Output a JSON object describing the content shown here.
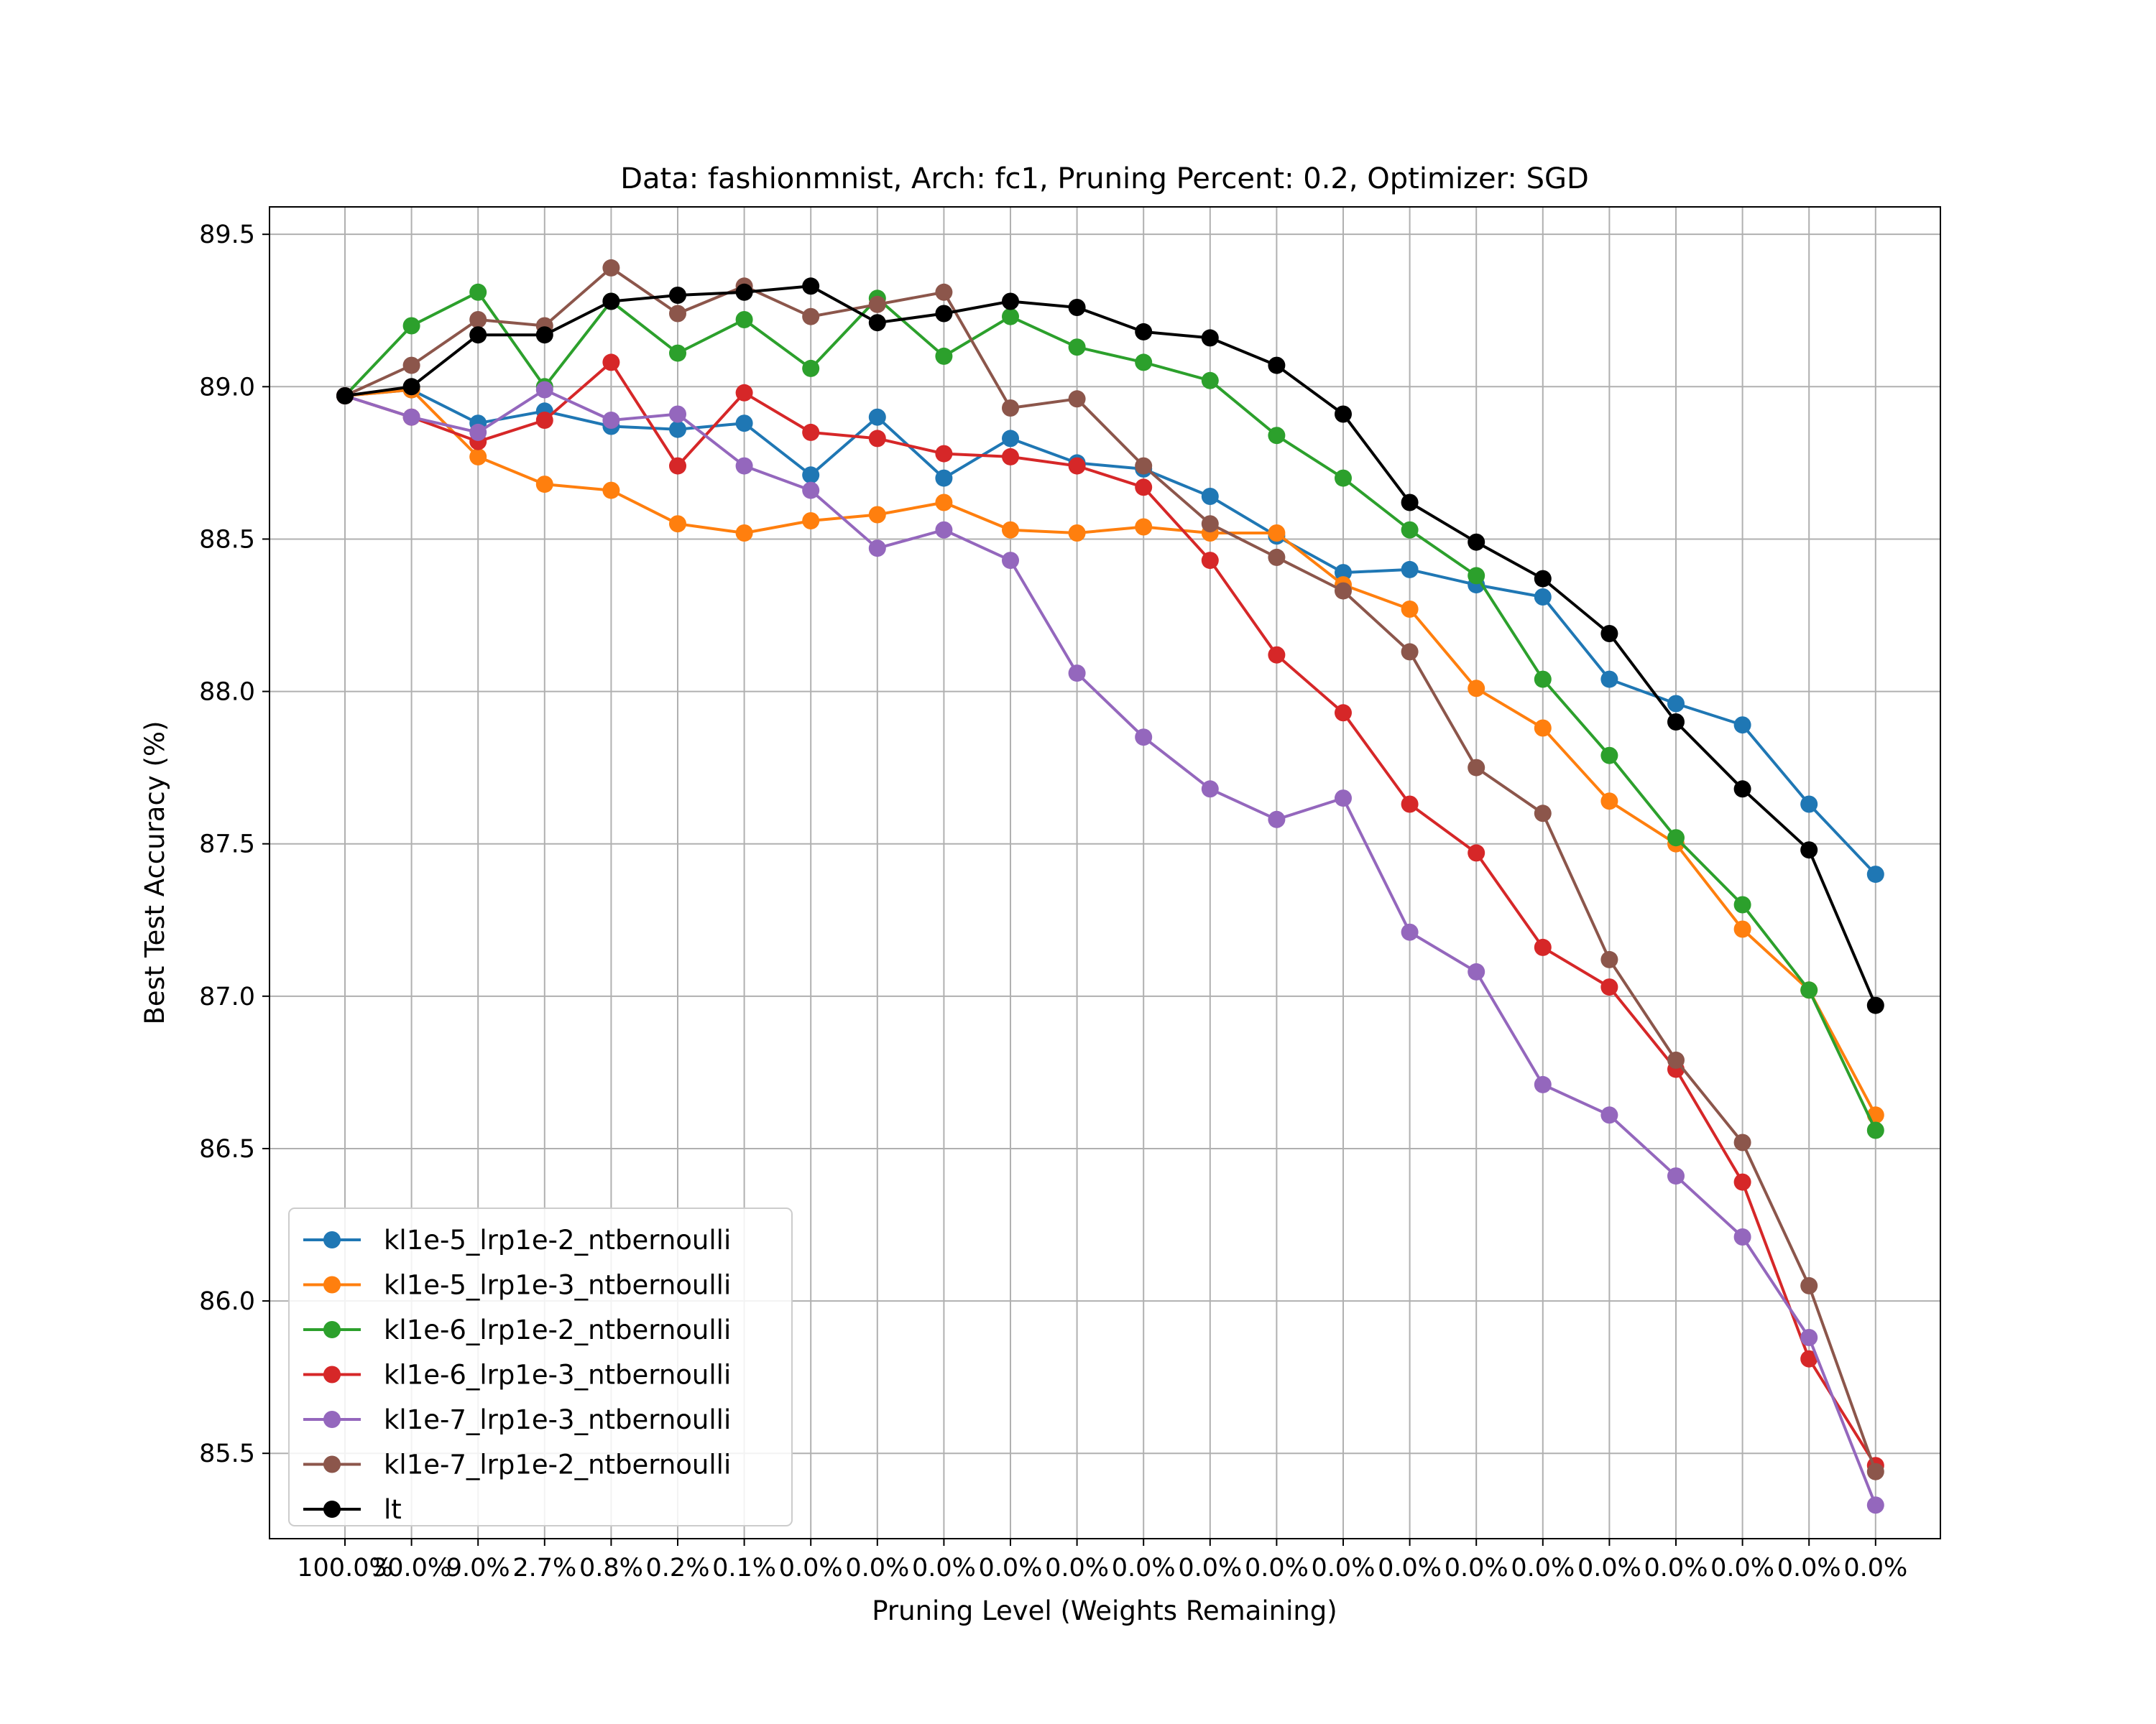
{
  "chart_data": {
    "type": "line",
    "title": "Data: fashionmnist, Arch: fc1, Pruning Percent: 0.2, Optimizer: SGD",
    "xlabel": "Pruning Level (Weights Remaining)",
    "ylabel": "Best Test Accuracy (%)",
    "categories": [
      "100.0%",
      "30.0%",
      "9.0%",
      "2.7%",
      "0.8%",
      "0.2%",
      "0.1%",
      "0.0%",
      "0.0%",
      "0.0%",
      "0.0%",
      "0.0%",
      "0.0%",
      "0.0%",
      "0.0%",
      "0.0%",
      "0.0%",
      "0.0%",
      "0.0%",
      "0.0%",
      "0.0%",
      "0.0%",
      "0.0%",
      "0.0%"
    ],
    "ylim": [
      85.22,
      89.59
    ],
    "yticks": [
      85.5,
      86.0,
      86.5,
      87.0,
      87.5,
      88.0,
      88.5,
      89.0,
      89.5
    ],
    "ytick_labels": [
      "85.5",
      "86.0",
      "86.5",
      "87.0",
      "87.5",
      "88.0",
      "88.5",
      "89.0",
      "89.5"
    ],
    "grid": true,
    "legend_position": "lower-left",
    "series": [
      {
        "name": "kl1e-5_lrp1e-2_ntbernoulli",
        "color": "#1f77b4",
        "values": [
          88.97,
          88.99,
          88.88,
          88.92,
          88.87,
          88.86,
          88.88,
          88.71,
          88.9,
          88.7,
          88.83,
          88.75,
          88.73,
          88.64,
          88.51,
          88.39,
          88.4,
          88.35,
          88.31,
          88.04,
          87.96,
          87.89,
          87.63,
          87.4
        ]
      },
      {
        "name": "kl1e-5_lrp1e-3_ntbernoulli",
        "color": "#ff7f0e",
        "values": [
          88.97,
          88.99,
          88.77,
          88.68,
          88.66,
          88.55,
          88.52,
          88.56,
          88.58,
          88.62,
          88.53,
          88.52,
          88.54,
          88.52,
          88.52,
          88.35,
          88.27,
          88.01,
          87.88,
          87.64,
          87.5,
          87.22,
          87.02,
          86.61
        ]
      },
      {
        "name": "kl1e-6_lrp1e-2_ntbernoulli",
        "color": "#2ca02c",
        "values": [
          88.97,
          89.2,
          89.31,
          89.0,
          89.28,
          89.11,
          89.22,
          89.06,
          89.29,
          89.1,
          89.23,
          89.13,
          89.08,
          89.02,
          88.84,
          88.7,
          88.53,
          88.38,
          88.04,
          87.79,
          87.52,
          87.3,
          87.02,
          86.56
        ]
      },
      {
        "name": "kl1e-6_lrp1e-3_ntbernoulli",
        "color": "#d62728",
        "values": [
          88.97,
          88.9,
          88.82,
          88.89,
          89.08,
          88.74,
          88.98,
          88.85,
          88.83,
          88.78,
          88.77,
          88.74,
          88.67,
          88.43,
          88.12,
          87.93,
          87.63,
          87.47,
          87.16,
          87.03,
          86.76,
          86.39,
          85.81,
          85.46
        ]
      },
      {
        "name": "kl1e-7_lrp1e-3_ntbernoulli",
        "color": "#9467bd",
        "values": [
          88.97,
          88.9,
          88.85,
          88.99,
          88.89,
          88.91,
          88.74,
          88.66,
          88.47,
          88.53,
          88.43,
          88.06,
          87.85,
          87.68,
          87.58,
          87.65,
          87.21,
          87.08,
          86.71,
          86.61,
          86.41,
          86.21,
          85.88,
          85.33
        ]
      },
      {
        "name": "kl1e-7_lrp1e-2_ntbernoulli",
        "color": "#8c564b",
        "values": [
          88.97,
          89.07,
          89.22,
          89.2,
          89.39,
          89.24,
          89.33,
          89.23,
          89.27,
          89.31,
          88.93,
          88.96,
          88.74,
          88.55,
          88.44,
          88.33,
          88.13,
          87.75,
          87.6,
          87.12,
          86.79,
          86.52,
          86.05,
          85.44
        ]
      },
      {
        "name": "lt",
        "color": "#000000",
        "values": [
          88.97,
          89.0,
          89.17,
          89.17,
          89.28,
          89.3,
          89.31,
          89.33,
          89.21,
          89.24,
          89.28,
          89.26,
          89.18,
          89.16,
          89.07,
          88.91,
          88.62,
          88.49,
          88.37,
          88.19,
          87.9,
          87.68,
          87.48,
          86.97
        ]
      }
    ]
  }
}
